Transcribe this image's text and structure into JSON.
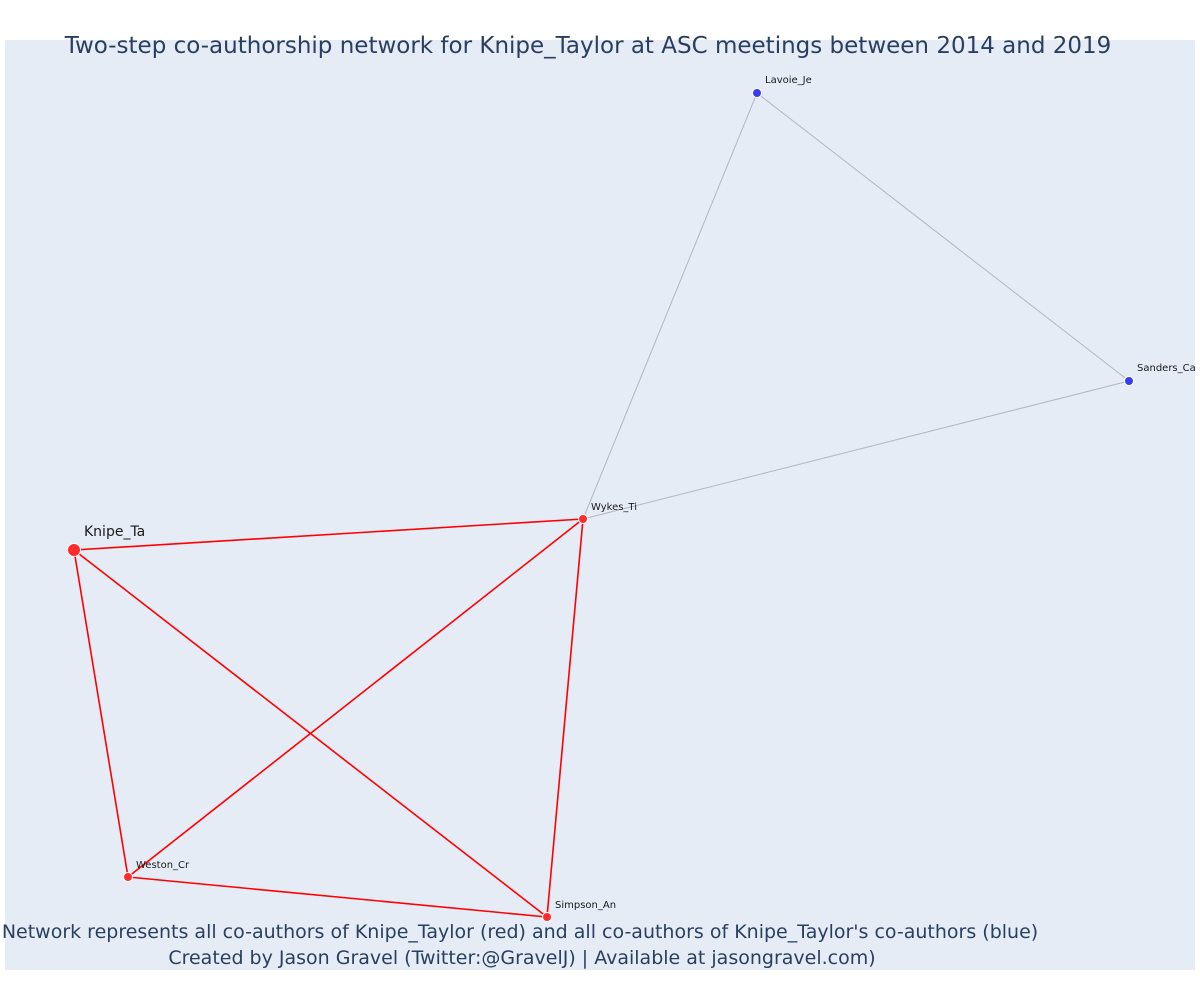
{
  "title": "Two-step co-authorship network for Knipe_Taylor at ASC meetings between 2014 and 2019",
  "caption_line1": "Network represents all co-authors of Knipe_Taylor (red) and all co-authors of Knipe_Taylor's co-authors (blue)",
  "caption_line2": "Created by Jason Gravel (Twitter:@GravelJ) | Available at jasongravel.com)",
  "colors": {
    "background": "#e5ecf6",
    "first_degree": "#ff0000",
    "second_degree": "#3a3af2",
    "second_degree_edge": "#b4b4c4",
    "text": "#2a3f5f"
  },
  "nodes": [
    {
      "id": "knipe",
      "label": "Knipe_Ta",
      "group": "first_degree",
      "focal": true
    },
    {
      "id": "wykes",
      "label": "Wykes_Ti",
      "group": "first_degree",
      "focal": false
    },
    {
      "id": "weston",
      "label": "Weston_Cr",
      "group": "first_degree",
      "focal": false
    },
    {
      "id": "simpson",
      "label": "Simpson_An",
      "group": "first_degree",
      "focal": false
    },
    {
      "id": "lavoie",
      "label": "Lavoie_Je",
      "group": "second_degree",
      "focal": false
    },
    {
      "id": "sanders",
      "label": "Sanders_Ca",
      "group": "second_degree",
      "focal": false
    }
  ],
  "edges": [
    {
      "source": "knipe",
      "target": "wykes",
      "group": "first_degree"
    },
    {
      "source": "knipe",
      "target": "weston",
      "group": "first_degree"
    },
    {
      "source": "knipe",
      "target": "simpson",
      "group": "first_degree"
    },
    {
      "source": "wykes",
      "target": "weston",
      "group": "first_degree"
    },
    {
      "source": "wykes",
      "target": "simpson",
      "group": "first_degree"
    },
    {
      "source": "weston",
      "target": "simpson",
      "group": "first_degree"
    },
    {
      "source": "wykes",
      "target": "lavoie",
      "group": "second_degree"
    },
    {
      "source": "wykes",
      "target": "sanders",
      "group": "second_degree"
    },
    {
      "source": "lavoie",
      "target": "sanders",
      "group": "second_degree"
    }
  ]
}
